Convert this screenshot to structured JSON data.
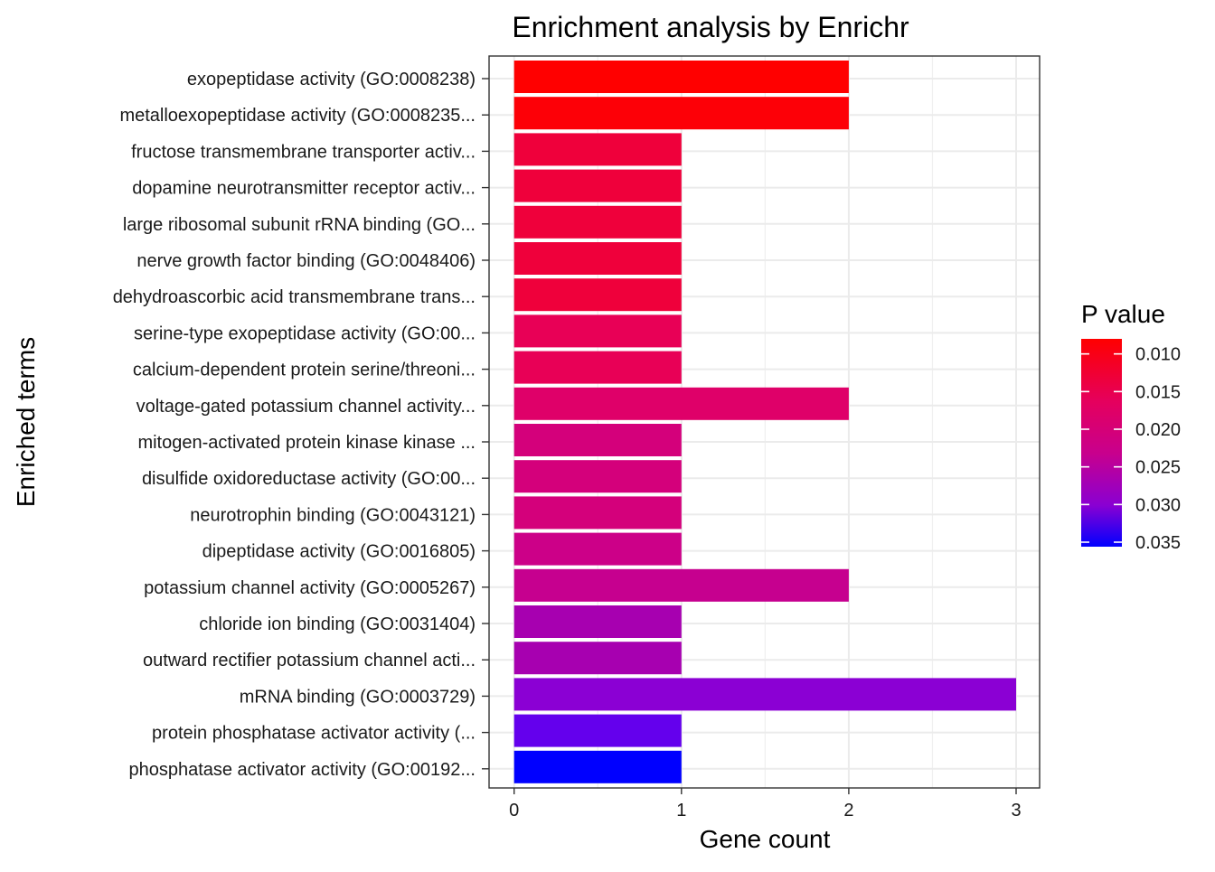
{
  "chart_data": {
    "type": "bar",
    "orientation": "horizontal",
    "title": "Enrichment analysis by Enrichr",
    "xlabel": "Gene count",
    "ylabel": "Enriched terms",
    "xlim": [
      0,
      3.15
    ],
    "xticks": [
      0,
      1,
      2,
      3
    ],
    "grid": true,
    "categories": [
      "exopeptidase activity (GO:0008238)",
      "metalloexopeptidase activity (GO:0008235...",
      "fructose transmembrane transporter activ...",
      "dopamine neurotransmitter receptor activ...",
      "large ribosomal subunit rRNA binding (GO...",
      "nerve growth factor binding (GO:0048406)",
      "dehydroascorbic acid transmembrane trans...",
      "serine-type exopeptidase activity (GO:00...",
      "calcium-dependent protein serine/threoni...",
      "voltage-gated potassium channel activity...",
      "mitogen-activated protein kinase kinase ...",
      "disulfide oxidoreductase activity (GO:00...",
      "neurotrophin binding (GO:0043121)",
      "dipeptidase activity (GO:0016805)",
      "potassium channel activity (GO:0005267)",
      "chloride ion binding (GO:0031404)",
      "outward rectifier potassium channel acti...",
      "mRNA binding (GO:0003729)",
      "protein phosphatase activator activity (...",
      "phosphatase activator activity (GO:00192..."
    ],
    "values": [
      2,
      2,
      1,
      1,
      1,
      1,
      1,
      1,
      1,
      2,
      1,
      1,
      1,
      1,
      2,
      1,
      1,
      3,
      1,
      1
    ],
    "p_values": [
      0.008,
      0.008,
      0.0142,
      0.0142,
      0.0142,
      0.0142,
      0.0142,
      0.0163,
      0.0163,
      0.0185,
      0.0208,
      0.0208,
      0.0208,
      0.0226,
      0.023,
      0.0278,
      0.0278,
      0.0293,
      0.0322,
      0.0356
    ],
    "bar_colors": [
      "#ff0000",
      "#fd0007",
      "#ef003b",
      "#ef003b",
      "#ef003b",
      "#ef003b",
      "#ef003b",
      "#e80056",
      "#e80056",
      "#df0069",
      "#d4007b",
      "#d4007b",
      "#d4007b",
      "#cc0088",
      "#c6008f",
      "#a700b0",
      "#a700b0",
      "#8b00d4",
      "#6400ed",
      "#0000ff"
    ],
    "legend": {
      "title": "P value",
      "position": "right",
      "ticks": [
        "0.010",
        "0.015",
        "0.020",
        "0.025",
        "0.030",
        "0.035"
      ],
      "tick_values": [
        0.01,
        0.015,
        0.02,
        0.025,
        0.03,
        0.035
      ],
      "range": [
        0.008,
        0.0356
      ],
      "color_low_p": "#ff0000",
      "color_high_p": "#0000ff"
    }
  }
}
